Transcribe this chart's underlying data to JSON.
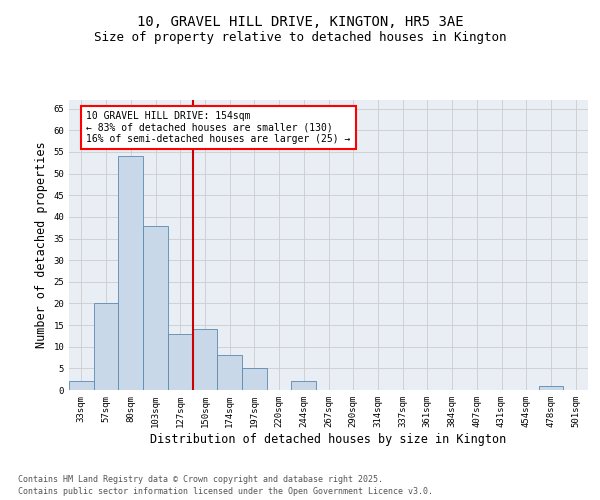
{
  "title_line1": "10, GRAVEL HILL DRIVE, KINGTON, HR5 3AE",
  "title_line2": "Size of property relative to detached houses in Kington",
  "xlabel": "Distribution of detached houses by size in Kington",
  "ylabel": "Number of detached properties",
  "categories": [
    "33sqm",
    "57sqm",
    "80sqm",
    "103sqm",
    "127sqm",
    "150sqm",
    "174sqm",
    "197sqm",
    "220sqm",
    "244sqm",
    "267sqm",
    "290sqm",
    "314sqm",
    "337sqm",
    "361sqm",
    "384sqm",
    "407sqm",
    "431sqm",
    "454sqm",
    "478sqm",
    "501sqm"
  ],
  "values": [
    2,
    20,
    54,
    38,
    13,
    14,
    8,
    5,
    0,
    2,
    0,
    0,
    0,
    0,
    0,
    0,
    0,
    0,
    0,
    1,
    0
  ],
  "bar_color": "#c8d8e8",
  "bar_edge_color": "#5a8ab0",
  "red_line_index": 5,
  "annotation_text": "10 GRAVEL HILL DRIVE: 154sqm\n← 83% of detached houses are smaller (130)\n16% of semi-detached houses are larger (25) →",
  "annotation_box_color": "white",
  "annotation_box_edge_color": "red",
  "red_line_color": "#cc0000",
  "ylim": [
    0,
    67
  ],
  "yticks": [
    0,
    5,
    10,
    15,
    20,
    25,
    30,
    35,
    40,
    45,
    50,
    55,
    60,
    65
  ],
  "grid_color": "#cccccc",
  "background_color": "#e8eef4",
  "footer_line1": "Contains HM Land Registry data © Crown copyright and database right 2025.",
  "footer_line2": "Contains public sector information licensed under the Open Government Licence v3.0.",
  "title_fontsize": 10,
  "subtitle_fontsize": 9,
  "tick_fontsize": 6.5,
  "label_fontsize": 8.5,
  "footer_fontsize": 6,
  "ann_fontsize": 7
}
